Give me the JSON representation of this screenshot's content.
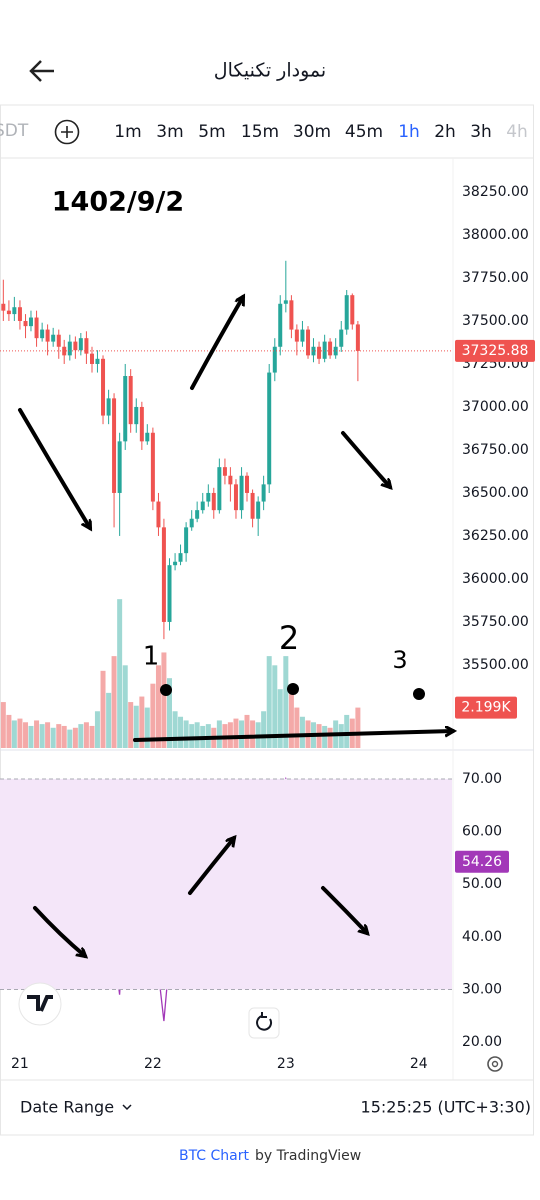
{
  "header": {
    "title": "نمودار تکنیکال"
  },
  "toolbar": {
    "symbol": "SDT",
    "intervals": [
      "1m",
      "3m",
      "5m",
      "15m",
      "30m",
      "45m",
      "1h",
      "2h",
      "3h",
      "4h"
    ]
  },
  "annotations": {
    "date": "1402/9/2",
    "markers": [
      "1",
      "2",
      "3"
    ]
  },
  "footer": {
    "date_range": "Date Range",
    "time": "15:25:25 (UTC+3:30)",
    "credit": "BTC Chart",
    "credit_suffix": "by TradingView"
  },
  "chart_data": {
    "type": "candlestick",
    "up_color": "#26a69a",
    "down_color": "#ef5350",
    "x": [
      20.875,
      20.917,
      20.958,
      21.0,
      21.042,
      21.083,
      21.125,
      21.167,
      21.208,
      21.25,
      21.292,
      21.333,
      21.375,
      21.417,
      21.458,
      21.5,
      21.542,
      21.583,
      21.625,
      21.667,
      21.708,
      21.75,
      21.792,
      21.833,
      21.875,
      21.917,
      21.958,
      22.0,
      22.042,
      22.083,
      22.125,
      22.167,
      22.208,
      22.25,
      22.292,
      22.333,
      22.375,
      22.417,
      22.458,
      22.5,
      22.542,
      22.583,
      22.625,
      22.667,
      22.708,
      22.75,
      22.792,
      22.833,
      22.875,
      22.917,
      22.958,
      23.0,
      23.042,
      23.083,
      23.125,
      23.167,
      23.208,
      23.25,
      23.292,
      23.333,
      23.375,
      23.417,
      23.458,
      23.5,
      23.542
    ],
    "open": [
      37600,
      37560,
      37540,
      37580,
      37500,
      37470,
      37520,
      37400,
      37450,
      37380,
      37420,
      37350,
      37300,
      37380,
      37330,
      37400,
      37310,
      37250,
      37280,
      36950,
      37050,
      36500,
      36800,
      37180,
      36900,
      37000,
      36800,
      36850,
      36450,
      36300,
      35750,
      36080,
      36100,
      36150,
      36300,
      36350,
      36400,
      36450,
      36500,
      36400,
      36650,
      36600,
      36550,
      36400,
      36600,
      36500,
      36350,
      36450,
      36550,
      37200,
      37350,
      37600,
      37620,
      37450,
      37380,
      37450,
      37300,
      37350,
      37280,
      37380,
      37300,
      37350,
      37450,
      37650,
      37480
    ],
    "high": [
      37740,
      37620,
      37640,
      37620,
      37540,
      37560,
      37560,
      37490,
      37480,
      37460,
      37450,
      37390,
      37420,
      37410,
      37430,
      37440,
      37350,
      37330,
      37300,
      37100,
      37080,
      36850,
      37250,
      37220,
      37050,
      37030,
      36900,
      36880,
      36500,
      36350,
      36120,
      36150,
      36200,
      36330,
      36400,
      36450,
      36500,
      36550,
      36530,
      36700,
      36700,
      36650,
      36580,
      36650,
      36620,
      36520,
      36480,
      36600,
      37250,
      37400,
      37650,
      37850,
      37650,
      37480,
      37500,
      37470,
      37400,
      37380,
      37420,
      37400,
      37400,
      37500,
      37680,
      37660,
      37500
    ],
    "low": [
      37500,
      37500,
      37500,
      37450,
      37400,
      37440,
      37350,
      37380,
      37300,
      37350,
      37280,
      37250,
      37270,
      37280,
      37300,
      37250,
      37200,
      37200,
      36900,
      36900,
      36300,
      36250,
      36750,
      36850,
      36850,
      36750,
      36780,
      36400,
      36250,
      35650,
      35700,
      36050,
      36080,
      36100,
      36280,
      36330,
      36380,
      36420,
      36350,
      36380,
      36550,
      36450,
      36350,
      36350,
      36450,
      36300,
      36250,
      36400,
      36500,
      37150,
      37300,
      37550,
      37400,
      37300,
      37350,
      37280,
      37260,
      37250,
      37260,
      37280,
      37280,
      37320,
      37420,
      37450,
      37150
    ],
    "close": [
      37560,
      37540,
      37580,
      37500,
      37470,
      37520,
      37400,
      37450,
      37380,
      37420,
      37350,
      37300,
      37380,
      37330,
      37400,
      37310,
      37250,
      37280,
      36950,
      37050,
      36500,
      36800,
      37180,
      36900,
      37000,
      36800,
      36850,
      36450,
      36300,
      35750,
      36080,
      36100,
      36150,
      36300,
      36350,
      36400,
      36450,
      36500,
      36400,
      36650,
      36600,
      36550,
      36400,
      36600,
      36500,
      36350,
      36450,
      36550,
      37200,
      37350,
      37600,
      37620,
      37450,
      37380,
      37450,
      37300,
      37350,
      37280,
      37380,
      37300,
      37350,
      37450,
      37650,
      37480,
      37325.88
    ],
    "last_price": 37325.88,
    "xlim": [
      20.85,
      24.25
    ],
    "xticks": [
      21,
      22,
      23,
      24
    ],
    "ylim": [
      35017,
      38436
    ],
    "yticks": [
      {
        "value": 35500,
        "label": "35500.00"
      },
      {
        "value": 35750,
        "label": "35750.00"
      },
      {
        "value": 36000,
        "label": "36000.00"
      },
      {
        "value": 36250,
        "label": "36250.00"
      },
      {
        "value": 36500,
        "label": "36500.00"
      },
      {
        "value": 36750,
        "label": "36750.00"
      },
      {
        "value": 37000,
        "label": "37000.00"
      },
      {
        "value": 37250,
        "label": "37250.00"
      },
      {
        "value": 37500,
        "label": "37500.00"
      },
      {
        "value": 37750,
        "label": "37750.00"
      },
      {
        "value": 38000,
        "label": "38000.00"
      },
      {
        "value": 38250,
        "label": "38250.00"
      }
    ],
    "volume": {
      "ylim": [
        0,
        32000
      ],
      "up_color": "#9fd8d3",
      "down_color": "#f4a9a8",
      "values": [
        2500,
        1800,
        1500,
        1600,
        1400,
        1200,
        1500,
        1300,
        1400,
        1100,
        1300,
        1200,
        1000,
        1100,
        1300,
        1400,
        1200,
        2000,
        4200,
        3000,
        5000,
        8100,
        4500,
        2500,
        2300,
        2800,
        2200,
        3500,
        4500,
        5200,
        3800,
        2000,
        1700,
        1500,
        1300,
        1400,
        1200,
        1300,
        1100,
        1500,
        1300,
        1400,
        1600,
        1500,
        1800,
        1500,
        1400,
        2000,
        5000,
        4500,
        3200,
        5000,
        3000,
        2200,
        1700,
        1500,
        1400,
        1300,
        1200,
        1100,
        1500,
        1300,
        1800,
        1600,
        2199
      ],
      "last": 2199,
      "last_label": "2.199K"
    },
    "rsi": {
      "type": "line",
      "color": "#a238b8",
      "band_color": "#f4e6f9",
      "band": [
        30,
        70
      ],
      "ylim": [
        18.5,
        73.6
      ],
      "yticks": [
        {
          "value": 20,
          "label": "20.00"
        },
        {
          "value": 30,
          "label": "30.00"
        },
        {
          "value": 40,
          "label": "40.00"
        },
        {
          "value": 50,
          "label": "50.00"
        },
        {
          "value": 60,
          "label": "60.00"
        },
        {
          "value": 70,
          "label": "70.00"
        }
      ],
      "values": [
        64,
        62,
        65,
        60,
        58,
        62,
        56,
        59,
        55,
        58,
        55,
        53,
        57,
        54,
        58,
        52,
        49,
        51,
        44,
        46,
        38,
        29,
        49,
        42,
        40,
        45,
        44,
        38,
        33,
        24,
        36,
        34,
        37,
        40,
        42,
        45,
        43,
        47,
        50,
        47,
        52,
        45,
        49,
        50,
        44,
        46,
        48,
        47,
        59,
        63,
        67,
        70,
        66,
        60,
        64,
        60,
        62,
        59,
        62,
        60,
        58,
        62,
        66,
        59,
        54.26
      ],
      "last": 54.26
    }
  }
}
